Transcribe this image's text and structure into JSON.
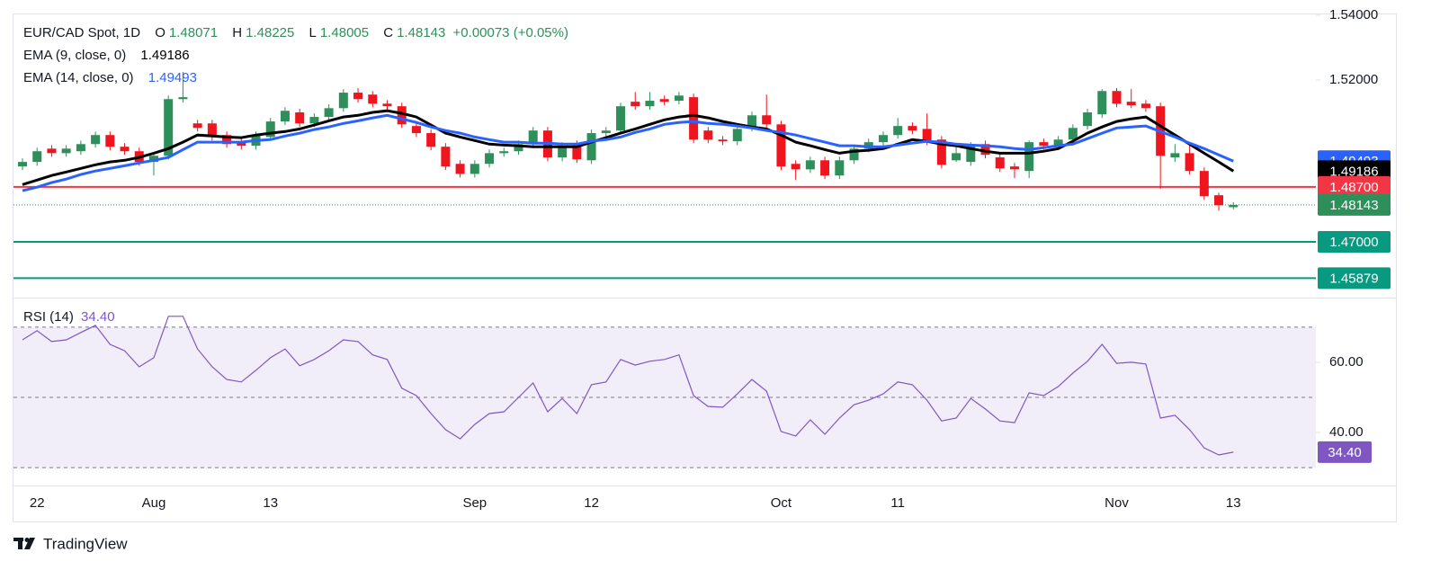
{
  "chart_data": {
    "type": "candlestick",
    "title": "EUR/CAD Spot, 1D",
    "ohlc_letters": [
      "O",
      "H",
      "L",
      "C"
    ],
    "change_label": "+0.00073 (+0.05%)",
    "up_color": "#2f8f5b",
    "down_color": "#f0141e",
    "categories": [
      null,
      "22",
      null,
      null,
      null,
      null,
      null,
      null,
      null,
      "Aug",
      null,
      null,
      null,
      null,
      null,
      null,
      null,
      "13",
      null,
      null,
      null,
      null,
      null,
      null,
      null,
      null,
      null,
      null,
      null,
      null,
      null,
      "Sep",
      null,
      null,
      null,
      null,
      null,
      null,
      null,
      "12",
      null,
      null,
      null,
      null,
      null,
      null,
      null,
      null,
      null,
      null,
      null,
      null,
      "Oct",
      null,
      null,
      null,
      null,
      null,
      null,
      null,
      "11",
      null,
      null,
      null,
      null,
      null,
      null,
      null,
      null,
      null,
      null,
      null,
      null,
      null,
      null,
      "Nov",
      null,
      null,
      null,
      null,
      null,
      null,
      null,
      "13"
    ],
    "candles": [
      [
        1.4933,
        1.4958,
        1.4922,
        1.4947
      ],
      [
        1.4947,
        1.4991,
        1.4935,
        1.498
      ],
      [
        1.4988,
        1.4999,
        1.4963,
        1.4974
      ],
      [
        1.4974,
        1.4999,
        1.4963,
        1.4988
      ],
      [
        1.498,
        1.5013,
        1.4969,
        1.5002
      ],
      [
        1.5002,
        1.5041,
        1.4991,
        1.503
      ],
      [
        1.503,
        1.5041,
        1.4983,
        1.4994
      ],
      [
        1.4994,
        1.5005,
        1.4969,
        1.498
      ],
      [
        1.498,
        1.4991,
        1.4935,
        1.4947
      ],
      [
        1.4947,
        1.4977,
        1.4905,
        1.4966
      ],
      [
        1.4966,
        1.5152,
        1.4955,
        1.5141
      ],
      [
        1.5141,
        1.5225,
        1.513,
        1.5147
      ],
      [
        1.5066,
        1.5077,
        1.5041,
        1.5052
      ],
      [
        1.5066,
        1.5077,
        1.5013,
        1.5024
      ],
      [
        1.503,
        1.5041,
        1.4991,
        1.5002
      ],
      [
        1.5008,
        1.5019,
        1.4985,
        1.4997
      ],
      [
        1.4997,
        1.5041,
        1.4985,
        1.503
      ],
      [
        1.5024,
        1.5083,
        1.5013,
        1.5072
      ],
      [
        1.5072,
        1.5116,
        1.5061,
        1.5105
      ],
      [
        1.51,
        1.5111,
        1.5055,
        1.5066
      ],
      [
        1.5066,
        1.5097,
        1.5055,
        1.5086
      ],
      [
        1.5086,
        1.5125,
        1.5074,
        1.5113
      ],
      [
        1.5113,
        1.5172,
        1.5102,
        1.5161
      ],
      [
        1.5161,
        1.5175,
        1.513,
        1.5141
      ],
      [
        1.5155,
        1.5166,
        1.5116,
        1.5127
      ],
      [
        1.5127,
        1.5138,
        1.5108,
        1.5119
      ],
      [
        1.5119,
        1.513,
        1.5052,
        1.5063
      ],
      [
        1.5058,
        1.5069,
        1.5024,
        1.5036
      ],
      [
        1.5036,
        1.5047,
        1.4983,
        1.4994
      ],
      [
        1.4994,
        1.5005,
        1.4922,
        1.4933
      ],
      [
        1.4941,
        1.4952,
        1.4899,
        1.491
      ],
      [
        1.491,
        1.4952,
        1.4899,
        1.4941
      ],
      [
        1.4941,
        1.4985,
        1.493,
        1.4974
      ],
      [
        1.4974,
        1.4991,
        1.4963,
        1.498
      ],
      [
        1.498,
        1.5013,
        1.4969,
        1.5002
      ],
      [
        1.5002,
        1.5055,
        1.4991,
        1.5044
      ],
      [
        1.5044,
        1.5055,
        1.4949,
        1.4961
      ],
      [
        1.4961,
        1.5008,
        1.4949,
        1.4997
      ],
      [
        1.5002,
        1.5013,
        1.4944,
        1.4955
      ],
      [
        1.4952,
        1.5047,
        1.4941,
        1.5036
      ],
      [
        1.5036,
        1.5055,
        1.5024,
        1.5044
      ],
      [
        1.5044,
        1.513,
        1.5033,
        1.5119
      ],
      [
        1.5133,
        1.5163,
        1.5108,
        1.5119
      ],
      [
        1.5119,
        1.5163,
        1.5108,
        1.5136
      ],
      [
        1.5141,
        1.5152,
        1.5122,
        1.5133
      ],
      [
        1.5136,
        1.5163,
        1.5125,
        1.5152
      ],
      [
        1.5147,
        1.5158,
        1.5005,
        1.5016
      ],
      [
        1.5044,
        1.5055,
        1.5005,
        1.5016
      ],
      [
        1.5016,
        1.5027,
        1.4999,
        1.5011
      ],
      [
        1.5011,
        1.5061,
        1.4999,
        1.5049
      ],
      [
        1.5052,
        1.5102,
        1.5041,
        1.5091
      ],
      [
        1.5091,
        1.5155,
        1.5052,
        1.5063
      ],
      [
        1.5063,
        1.5074,
        1.4922,
        1.4933
      ],
      [
        1.4941,
        1.4952,
        1.4891,
        1.4924
      ],
      [
        1.4924,
        1.4963,
        1.4913,
        1.4952
      ],
      [
        1.4952,
        1.4963,
        1.4894,
        1.4905
      ],
      [
        1.4905,
        1.4963,
        1.4894,
        1.4952
      ],
      [
        1.4952,
        1.4999,
        1.4941,
        1.4988
      ],
      [
        1.4988,
        1.5019,
        1.4977,
        1.5008
      ],
      [
        1.5008,
        1.5041,
        1.4997,
        1.503
      ],
      [
        1.503,
        1.5083,
        1.5019,
        1.5058
      ],
      [
        1.5058,
        1.5069,
        1.5033,
        1.5044
      ],
      [
        1.5049,
        1.5097,
        1.4999,
        1.5011
      ],
      [
        1.5016,
        1.5027,
        1.4927,
        1.4938
      ],
      [
        1.4952,
        1.5002,
        1.4947,
        1.4974
      ],
      [
        1.4947,
        1.5008,
        1.4935,
        1.4997
      ],
      [
        1.5002,
        1.5013,
        1.4958,
        1.4969
      ],
      [
        1.4961,
        1.4972,
        1.4916,
        1.4927
      ],
      [
        1.4933,
        1.4944,
        1.4897,
        1.4924
      ],
      [
        1.4919,
        1.5013,
        1.4897,
        1.5008
      ],
      [
        1.5008,
        1.5019,
        1.4985,
        1.4997
      ],
      [
        1.4997,
        1.5027,
        1.4985,
        1.5016
      ],
      [
        1.5016,
        1.5063,
        1.5005,
        1.5052
      ],
      [
        1.5058,
        1.5111,
        1.5047,
        1.51
      ],
      [
        1.5094,
        1.5172,
        1.5083,
        1.5166
      ],
      [
        1.5166,
        1.5175,
        1.5116,
        1.5127
      ],
      [
        1.5133,
        1.5172,
        1.5113,
        1.5122
      ],
      [
        1.5127,
        1.5138,
        1.5102,
        1.5113
      ],
      [
        1.5119,
        1.513,
        1.4863,
        1.4966
      ],
      [
        1.4961,
        1.5002,
        1.4947,
        1.4974
      ],
      [
        1.4974,
        1.5002,
        1.4908,
        1.4919
      ],
      [
        1.4919,
        1.493,
        1.483,
        1.4841
      ],
      [
        1.4844,
        1.4852,
        1.4796,
        1.4813
      ],
      [
        1.48071,
        1.48225,
        1.48005,
        1.48143
      ]
    ],
    "ylim": [
      1.45306,
      1.54056
    ],
    "yticks": [
      {
        "value": 1.54,
        "label": "1.54000"
      },
      {
        "value": 1.52,
        "label": "1.52000"
      }
    ],
    "series": [
      {
        "name": "EMA (9, close, 0)",
        "color": "#000000",
        "values": [
          1.4877,
          1.4891,
          1.4905,
          1.4916,
          1.4927,
          1.4938,
          1.4947,
          1.4952,
          1.4961,
          1.4974,
          1.4988,
          1.5008,
          1.503,
          1.5027,
          1.5024,
          1.5022,
          1.503,
          1.5036,
          1.5041,
          1.5049,
          1.5061,
          1.5074,
          1.5086,
          1.5091,
          1.51,
          1.5105,
          1.5097,
          1.5086,
          1.5061,
          1.5036,
          1.5024,
          1.5013,
          1.5002,
          1.4999,
          1.4997,
          1.4994,
          1.4994,
          1.4994,
          1.4994,
          1.5008,
          1.5022,
          1.5036,
          1.5049,
          1.5063,
          1.5077,
          1.5086,
          1.5091,
          1.5083,
          1.5072,
          1.5063,
          1.5055,
          1.5049,
          1.503,
          1.5008,
          1.4997,
          1.4985,
          1.4974,
          1.498,
          1.4983,
          1.4988,
          1.5002,
          1.5016,
          1.5011,
          1.5002,
          1.4997,
          1.4988,
          1.498,
          1.4974,
          1.4974,
          1.4974,
          1.498,
          1.4988,
          1.5011,
          1.5036,
          1.5055,
          1.5072,
          1.508,
          1.5086,
          1.5058,
          1.503,
          1.5002,
          1.4974,
          1.4947,
          1.49186
        ]
      },
      {
        "name": "EMA (14, close, 0)",
        "color": "#2962ff",
        "values": [
          1.4858,
          1.4869,
          1.4883,
          1.4894,
          1.4908,
          1.4919,
          1.4927,
          1.4935,
          1.4944,
          1.4952,
          1.4961,
          1.4985,
          1.5008,
          1.5008,
          1.5008,
          1.5008,
          1.5013,
          1.5016,
          1.5027,
          1.5036,
          1.5047,
          1.5055,
          1.5066,
          1.5074,
          1.5083,
          1.5091,
          1.508,
          1.5069,
          1.5055,
          1.5044,
          1.5036,
          1.5024,
          1.5016,
          1.5008,
          1.5008,
          1.5005,
          1.5005,
          1.5002,
          1.5002,
          1.5011,
          1.5016,
          1.5024,
          1.5038,
          1.5049,
          1.5063,
          1.5069,
          1.5072,
          1.5066,
          1.5063,
          1.5058,
          1.5052,
          1.5044,
          1.5038,
          1.503,
          1.5019,
          1.5008,
          1.4997,
          1.4997,
          1.4994,
          1.4994,
          1.4999,
          1.5005,
          1.5011,
          1.5008,
          1.5002,
          1.4999,
          1.4997,
          1.4994,
          1.4988,
          1.4985,
          1.4991,
          1.4997,
          1.5002,
          1.5019,
          1.5036,
          1.5052,
          1.5055,
          1.5058,
          1.5041,
          1.5024,
          1.5005,
          1.4988,
          1.4969,
          1.49493
        ]
      }
    ],
    "levels": [
      {
        "value": 1.487,
        "label": "1.48700",
        "color": "#f23645"
      },
      {
        "value": 1.47,
        "label": "1.47000",
        "color": "#089981"
      },
      {
        "value": 1.45879,
        "label": "1.45879",
        "color": "#089981"
      }
    ],
    "rsi": {
      "name": "RSI (14)",
      "color": "#7e57c2",
      "last_label": "34.40",
      "values": [
        66.4,
        69.0,
        65.9,
        66.4,
        68.5,
        70.5,
        65.1,
        63.3,
        58.7,
        61.3,
        73.1,
        73.1,
        63.8,
        58.7,
        55.1,
        54.4,
        57.7,
        61.3,
        63.8,
        59.0,
        60.8,
        63.3,
        66.4,
        65.9,
        62.1,
        60.8,
        52.6,
        50.5,
        45.4,
        40.8,
        38.2,
        42.3,
        45.4,
        45.9,
        50.0,
        54.1,
        45.9,
        49.7,
        45.4,
        53.6,
        54.4,
        60.8,
        59.2,
        60.3,
        60.8,
        62.1,
        50.5,
        47.4,
        47.2,
        51.0,
        55.1,
        51.8,
        40.3,
        39.0,
        43.6,
        39.5,
        44.1,
        47.9,
        49.2,
        51.0,
        54.4,
        53.6,
        49.2,
        43.3,
        44.1,
        49.7,
        46.7,
        43.3,
        42.8,
        51.3,
        50.5,
        53.1,
        56.9,
        60.3,
        65.1,
        59.7,
        60.0,
        59.5,
        44.1,
        44.9,
        40.8,
        35.6,
        33.6,
        34.4
      ],
      "ylim": [
        24.9,
        77.4
      ],
      "yticks": [
        {
          "value": 60,
          "label": "60.00"
        },
        {
          "value": 40,
          "label": "40.00"
        }
      ],
      "bands": [
        70,
        50,
        30
      ]
    },
    "brand": "TradingView"
  }
}
